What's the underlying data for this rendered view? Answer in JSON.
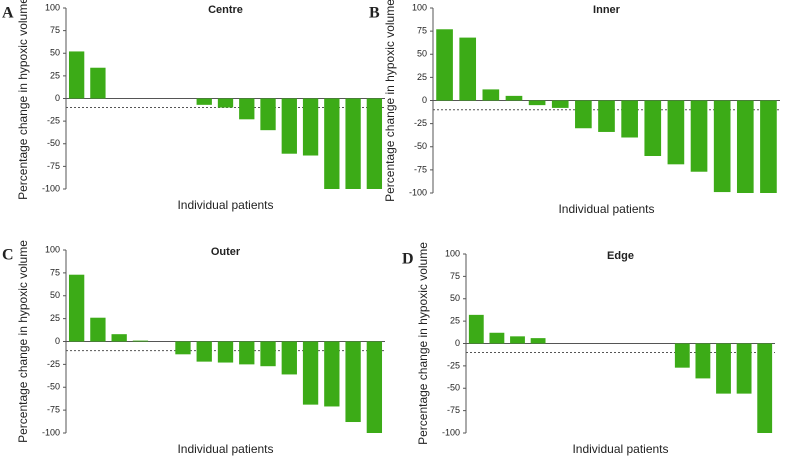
{
  "chart_data": [
    {
      "panel_label": "A",
      "type": "bar",
      "title": "Centre",
      "x_label": "Individual patients",
      "y_label": "Percentage change in hypoxic volume",
      "categories": [
        null,
        null,
        null,
        null,
        null,
        null,
        null,
        null,
        null,
        null,
        null,
        null,
        null,
        null,
        null
      ],
      "values": [
        52,
        34,
        0,
        0,
        0,
        0,
        -7,
        -10,
        -23,
        -35,
        -61,
        -63,
        -100,
        -100,
        -100
      ],
      "color": "#3cab17",
      "ylim": [
        -100,
        100
      ],
      "yticks": [
        -100,
        -75,
        -50,
        -25,
        0,
        25,
        50,
        75,
        100
      ],
      "reference_line": -10
    },
    {
      "panel_label": "B",
      "type": "bar",
      "title": "Inner",
      "x_label": "Individual patients",
      "y_label": "Percentage change in hypoxic volume",
      "categories": [
        null,
        null,
        null,
        null,
        null,
        null,
        null,
        null,
        null,
        null,
        null,
        null,
        null,
        null,
        null
      ],
      "values": [
        77,
        68,
        12,
        5,
        -5,
        -8,
        -30,
        -34,
        -40,
        -60,
        -69,
        -77,
        -99,
        -100,
        -100
      ],
      "color": "#3cab17",
      "ylim": [
        -100,
        100
      ],
      "yticks": [
        -100,
        -75,
        -50,
        -25,
        0,
        25,
        50,
        75,
        100
      ],
      "reference_line": -10
    },
    {
      "panel_label": "C",
      "type": "bar",
      "title": "Outer",
      "x_label": "Individual patients",
      "y_label": "Percentage change in hypoxic volume",
      "categories": [
        null,
        null,
        null,
        null,
        null,
        null,
        null,
        null,
        null,
        null,
        null,
        null,
        null,
        null,
        null
      ],
      "values": [
        73,
        26,
        8,
        1,
        0,
        -14,
        -22,
        -23,
        -25,
        -27,
        -36,
        -69,
        -71,
        -88,
        -100
      ],
      "color": "#3cab17",
      "ylim": [
        -100,
        100
      ],
      "yticks": [
        -100,
        -75,
        -50,
        -25,
        0,
        25,
        50,
        75,
        100
      ],
      "reference_line": -10
    },
    {
      "panel_label": "D",
      "type": "bar",
      "title": "Edge",
      "x_label": "Individual patients",
      "y_label": "Percentage change in hypoxic volume",
      "categories": [
        null,
        null,
        null,
        null,
        null,
        null,
        null,
        null,
        null,
        null,
        null,
        null,
        null,
        null,
        null
      ],
      "values": [
        32,
        12,
        8,
        6,
        0,
        0,
        0,
        0,
        0,
        0,
        -27,
        -39,
        -56,
        -56,
        -100
      ],
      "color": "#3cab17",
      "ylim": [
        -100,
        100
      ],
      "yticks": [
        -100,
        -75,
        -50,
        -25,
        0,
        25,
        50,
        75,
        100
      ],
      "reference_line": -10
    }
  ]
}
